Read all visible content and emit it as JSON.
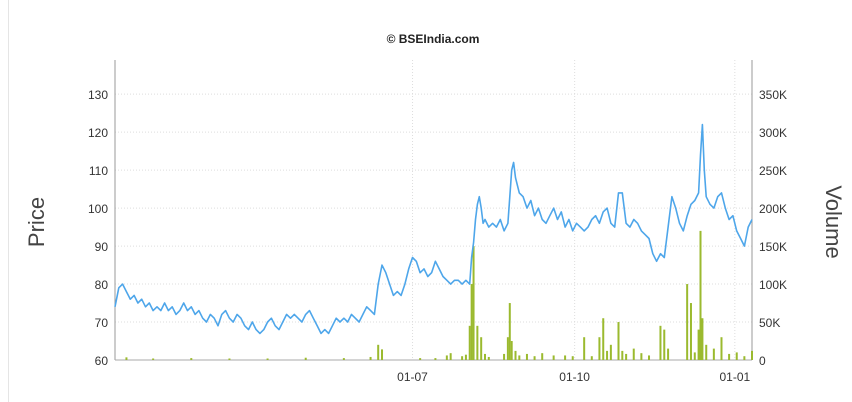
{
  "chart_data": {
    "type": "line",
    "title": "© BSEIndia.com",
    "ylabel": "Price",
    "y2label": "Volume",
    "xlabel": "",
    "x_ticks": [
      "01-07",
      "01-10",
      "01-01"
    ],
    "y_ticks": [
      "60",
      "70",
      "80",
      "90",
      "100",
      "110",
      "120",
      "130"
    ],
    "y2_ticks": [
      "0",
      "50K",
      "100K",
      "150K",
      "200K",
      "250K",
      "300K",
      "350K"
    ],
    "ylim": [
      60,
      139
    ],
    "y2lim": [
      0,
      395000
    ],
    "grid": true,
    "legend": "none",
    "colors": {
      "price": "#4ea6ea",
      "volume": "#9bba2f",
      "grid": "#dddddd",
      "axis": "#999999",
      "title": "#222222"
    },
    "price": [
      [
        0,
        74
      ],
      [
        2,
        79
      ],
      [
        4,
        80
      ],
      [
        6,
        78
      ],
      [
        8,
        76
      ],
      [
        10,
        77
      ],
      [
        12,
        75
      ],
      [
        14,
        76
      ],
      [
        16,
        74
      ],
      [
        18,
        75
      ],
      [
        20,
        73
      ],
      [
        22,
        74
      ],
      [
        24,
        73
      ],
      [
        26,
        75
      ],
      [
        28,
        73
      ],
      [
        30,
        74
      ],
      [
        32,
        72
      ],
      [
        34,
        73
      ],
      [
        36,
        75
      ],
      [
        38,
        73
      ],
      [
        40,
        74
      ],
      [
        42,
        72
      ],
      [
        44,
        73
      ],
      [
        46,
        71
      ],
      [
        48,
        70
      ],
      [
        50,
        72
      ],
      [
        52,
        71
      ],
      [
        54,
        69
      ],
      [
        56,
        72
      ],
      [
        58,
        73
      ],
      [
        60,
        71
      ],
      [
        62,
        70
      ],
      [
        64,
        72
      ],
      [
        66,
        71
      ],
      [
        68,
        69
      ],
      [
        70,
        68
      ],
      [
        72,
        70
      ],
      [
        74,
        68
      ],
      [
        76,
        67
      ],
      [
        78,
        68
      ],
      [
        80,
        70
      ],
      [
        82,
        71
      ],
      [
        84,
        69
      ],
      [
        86,
        68
      ],
      [
        88,
        70
      ],
      [
        90,
        72
      ],
      [
        92,
        71
      ],
      [
        94,
        72
      ],
      [
        96,
        71
      ],
      [
        98,
        70
      ],
      [
        100,
        72
      ],
      [
        102,
        73
      ],
      [
        104,
        71
      ],
      [
        106,
        69
      ],
      [
        108,
        67
      ],
      [
        110,
        68
      ],
      [
        112,
        67
      ],
      [
        114,
        69
      ],
      [
        116,
        71
      ],
      [
        118,
        70
      ],
      [
        120,
        71
      ],
      [
        122,
        70
      ],
      [
        124,
        72
      ],
      [
        126,
        71
      ],
      [
        128,
        70
      ],
      [
        130,
        72
      ],
      [
        132,
        74
      ],
      [
        134,
        73
      ],
      [
        136,
        72
      ],
      [
        138,
        80
      ],
      [
        140,
        85
      ],
      [
        142,
        83
      ],
      [
        144,
        80
      ],
      [
        146,
        77
      ],
      [
        148,
        78
      ],
      [
        150,
        77
      ],
      [
        152,
        80
      ],
      [
        154,
        84
      ],
      [
        156,
        87
      ],
      [
        158,
        86
      ],
      [
        160,
        83
      ],
      [
        162,
        84
      ],
      [
        164,
        82
      ],
      [
        166,
        83
      ],
      [
        168,
        86
      ],
      [
        170,
        84
      ],
      [
        172,
        82
      ],
      [
        174,
        81
      ],
      [
        176,
        80
      ],
      [
        178,
        81
      ],
      [
        180,
        81
      ],
      [
        182,
        80
      ],
      [
        184,
        81
      ],
      [
        186,
        80
      ],
      [
        187,
        87
      ],
      [
        188,
        91
      ],
      [
        189,
        97
      ],
      [
        190,
        101
      ],
      [
        191,
        103
      ],
      [
        192,
        100
      ],
      [
        193,
        96
      ],
      [
        194,
        97
      ],
      [
        196,
        95
      ],
      [
        198,
        96
      ],
      [
        200,
        95
      ],
      [
        202,
        97
      ],
      [
        204,
        94
      ],
      [
        206,
        96
      ],
      [
        207,
        103
      ],
      [
        208,
        110
      ],
      [
        209,
        112
      ],
      [
        210,
        108
      ],
      [
        212,
        104
      ],
      [
        214,
        103
      ],
      [
        216,
        100
      ],
      [
        218,
        102
      ],
      [
        220,
        98
      ],
      [
        222,
        100
      ],
      [
        224,
        97
      ],
      [
        226,
        96
      ],
      [
        228,
        98
      ],
      [
        230,
        100
      ],
      [
        232,
        97
      ],
      [
        234,
        99
      ],
      [
        236,
        95
      ],
      [
        238,
        97
      ],
      [
        240,
        94
      ],
      [
        242,
        96
      ],
      [
        244,
        95
      ],
      [
        246,
        94
      ],
      [
        248,
        95
      ],
      [
        250,
        97
      ],
      [
        252,
        98
      ],
      [
        254,
        96
      ],
      [
        256,
        99
      ],
      [
        258,
        100
      ],
      [
        260,
        96
      ],
      [
        262,
        95
      ],
      [
        264,
        104
      ],
      [
        266,
        104
      ],
      [
        267,
        100
      ],
      [
        268,
        96
      ],
      [
        270,
        95
      ],
      [
        272,
        97
      ],
      [
        274,
        96
      ],
      [
        276,
        94
      ],
      [
        278,
        93
      ],
      [
        280,
        92
      ],
      [
        282,
        88
      ],
      [
        284,
        86
      ],
      [
        286,
        88
      ],
      [
        288,
        87
      ],
      [
        290,
        95
      ],
      [
        292,
        103
      ],
      [
        294,
        100
      ],
      [
        296,
        96
      ],
      [
        298,
        94
      ],
      [
        300,
        98
      ],
      [
        302,
        101
      ],
      [
        304,
        102
      ],
      [
        306,
        104
      ],
      [
        307,
        114
      ],
      [
        308,
        122
      ],
      [
        309,
        110
      ],
      [
        310,
        103
      ],
      [
        312,
        101
      ],
      [
        314,
        100
      ],
      [
        316,
        103
      ],
      [
        318,
        104
      ],
      [
        320,
        100
      ],
      [
        322,
        97
      ],
      [
        324,
        98
      ],
      [
        326,
        94
      ],
      [
        328,
        92
      ],
      [
        330,
        90
      ],
      [
        332,
        95
      ],
      [
        334,
        97
      ]
    ],
    "volume": [
      [
        6,
        3500
      ],
      [
        20,
        2000
      ],
      [
        40,
        2500
      ],
      [
        60,
        2000
      ],
      [
        80,
        2000
      ],
      [
        100,
        3000
      ],
      [
        120,
        2500
      ],
      [
        134,
        4000
      ],
      [
        138,
        20000
      ],
      [
        140,
        14000
      ],
      [
        160,
        2500
      ],
      [
        168,
        2500
      ],
      [
        174,
        6000
      ],
      [
        176,
        9000
      ],
      [
        182,
        5000
      ],
      [
        184,
        7000
      ],
      [
        186,
        45000
      ],
      [
        187,
        100000
      ],
      [
        188,
        150000
      ],
      [
        190,
        45000
      ],
      [
        192,
        30000
      ],
      [
        194,
        8000
      ],
      [
        196,
        4000
      ],
      [
        204,
        8000
      ],
      [
        206,
        30000
      ],
      [
        207,
        75000
      ],
      [
        208,
        25000
      ],
      [
        210,
        12000
      ],
      [
        212,
        6000
      ],
      [
        216,
        8000
      ],
      [
        220,
        5000
      ],
      [
        224,
        9000
      ],
      [
        230,
        6000
      ],
      [
        236,
        6000
      ],
      [
        240,
        5000
      ],
      [
        246,
        30000
      ],
      [
        250,
        5000
      ],
      [
        254,
        30000
      ],
      [
        256,
        55000
      ],
      [
        258,
        12000
      ],
      [
        260,
        20000
      ],
      [
        264,
        50000
      ],
      [
        266,
        12000
      ],
      [
        268,
        8000
      ],
      [
        272,
        15000
      ],
      [
        276,
        9000
      ],
      [
        280,
        6000
      ],
      [
        286,
        45000
      ],
      [
        288,
        40000
      ],
      [
        290,
        15000
      ],
      [
        300,
        100000
      ],
      [
        302,
        75000
      ],
      [
        304,
        10000
      ],
      [
        306,
        40000
      ],
      [
        307,
        170000
      ],
      [
        308,
        55000
      ],
      [
        310,
        20000
      ],
      [
        314,
        15000
      ],
      [
        318,
        30000
      ],
      [
        322,
        8000
      ],
      [
        326,
        10000
      ],
      [
        330,
        5000
      ],
      [
        334,
        12000
      ]
    ]
  }
}
